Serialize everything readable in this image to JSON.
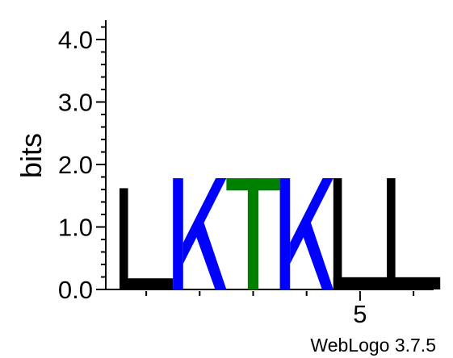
{
  "chart_data": {
    "type": "sequence-logo",
    "ylabel": "bits",
    "ylim": [
      0,
      4.3
    ],
    "yticks": [
      {
        "value": 0,
        "label": "0.0"
      },
      {
        "value": 1,
        "label": "1.0"
      },
      {
        "value": 2,
        "label": "2.0"
      },
      {
        "value": 3,
        "label": "3.0"
      },
      {
        "value": 4,
        "label": "4.0"
      }
    ],
    "xticks": [
      {
        "position": 5,
        "label": "5"
      }
    ],
    "positions": [
      {
        "position": 1,
        "letter": "L",
        "bits": 1.62,
        "color": "#000000"
      },
      {
        "position": 2,
        "letter": "K",
        "bits": 1.78,
        "color": "#0000ff"
      },
      {
        "position": 3,
        "letter": "T",
        "bits": 1.78,
        "color": "#008000"
      },
      {
        "position": 4,
        "letter": "K",
        "bits": 1.78,
        "color": "#0000ff"
      },
      {
        "position": 5,
        "letter": "L",
        "bits": 1.78,
        "color": "#000000"
      },
      {
        "position": 6,
        "letter": "L",
        "bits": 1.78,
        "color": "#000000"
      }
    ],
    "credit": "WebLogo 3.7.5"
  }
}
